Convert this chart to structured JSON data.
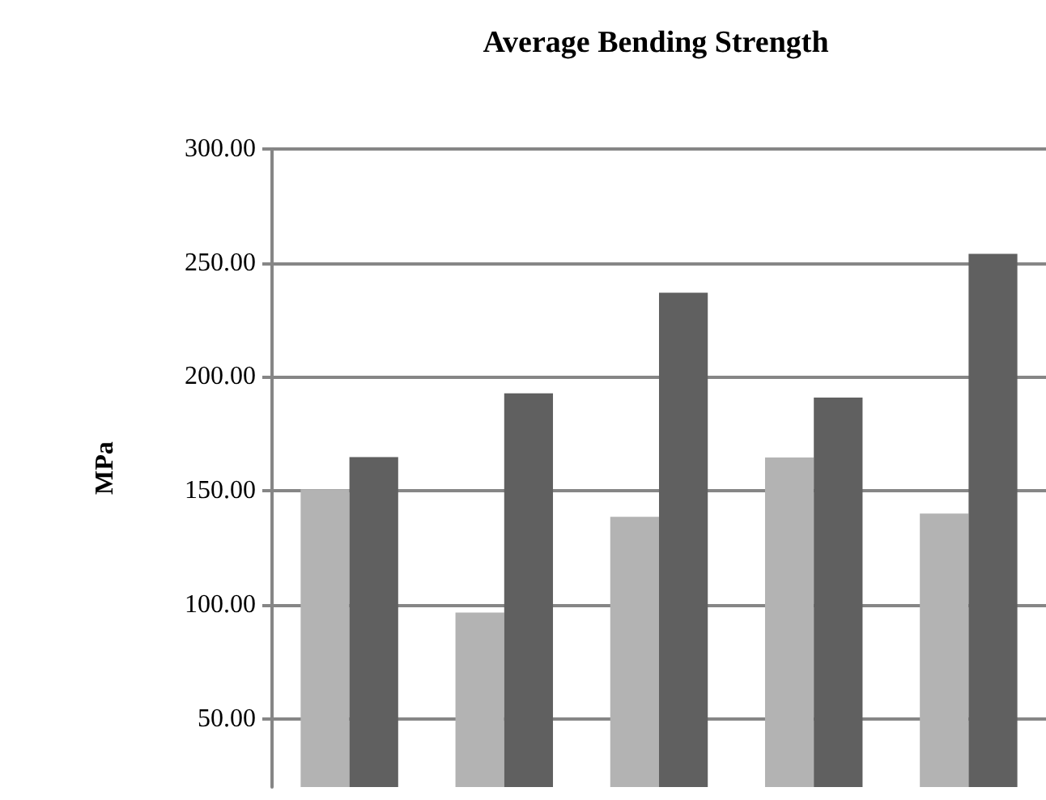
{
  "chart_data": {
    "type": "bar",
    "title": "Average Bending Strength",
    "ylabel": "MPa",
    "categories": [
      null,
      null,
      null,
      null,
      null
    ],
    "series": [
      {
        "color": "#b3b3b3",
        "values": [
          150.7,
          96.6,
          138.6,
          164.6,
          140.0
        ]
      },
      {
        "color": "#606060",
        "values": [
          164.8,
          192.8,
          236.9,
          190.9,
          254.0
        ]
      }
    ],
    "ylim": [
      20,
      300
    ],
    "yticks": [
      {
        "value": 50,
        "label": "50.00"
      },
      {
        "value": 100,
        "label": "100.00"
      },
      {
        "value": 150,
        "label": "150.00"
      },
      {
        "value": 200,
        "label": "200.00"
      },
      {
        "value": 250,
        "label": "250.00"
      },
      {
        "value": 300,
        "label": "300.00"
      }
    ],
    "grid": "y"
  }
}
